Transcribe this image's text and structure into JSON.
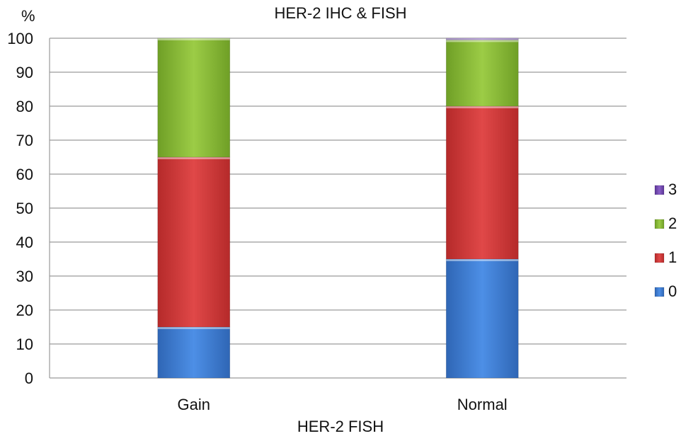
{
  "chart_data": {
    "type": "bar",
    "stacked": true,
    "title": "HER-2 IHC & FISH",
    "xlabel": "HER-2 FISH",
    "ylabel": "%",
    "ylim": [
      0,
      100
    ],
    "yticks": [
      0,
      10,
      20,
      30,
      40,
      50,
      60,
      70,
      80,
      90,
      100
    ],
    "categories": [
      "Gain",
      "Normal"
    ],
    "series": [
      {
        "name": "0",
        "values": [
          15,
          35
        ],
        "color": "#3f7fd6"
      },
      {
        "name": "1",
        "values": [
          50,
          45
        ],
        "color": "#d63a3a"
      },
      {
        "name": "2",
        "values": [
          35,
          19.5
        ],
        "color": "#8ebf3a"
      },
      {
        "name": "3",
        "values": [
          0,
          0.5
        ],
        "color": "#7a4fb8"
      }
    ],
    "legend_position": "right",
    "grid": true
  }
}
